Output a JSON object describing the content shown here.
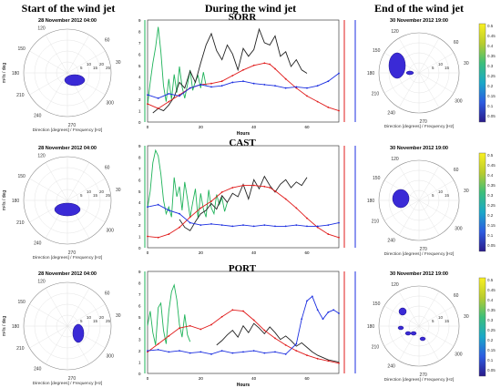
{
  "titles": {
    "start": "Start of the wind jet",
    "during": "During the wind jet",
    "end": "End of the wind jet"
  },
  "polar": {
    "dir_ticks": [
      "300",
      "270",
      "240",
      "210",
      "180",
      "150",
      "120",
      "60",
      "30"
    ],
    "freq_ticks": [
      "5",
      "10",
      "15",
      "20",
      "25"
    ],
    "freq_ticks_small": [
      "5",
      "10",
      "15"
    ],
    "ylabel": "m²/s / deg",
    "xlabel": "Direction [degrees] / Frequency [Hz]",
    "start_date": "28 November 2012   04:00",
    "end_date": "30 November 2012   19:00"
  },
  "colorbar": {
    "ticks": [
      "0.5",
      "0.45",
      "0.4",
      "0.35",
      "0.3",
      "0.25",
      "0.2",
      "0.15",
      "0.1",
      "0.05"
    ]
  },
  "chart_data": [
    {
      "type": "line",
      "title": "SORR",
      "xlabel": "Hours",
      "xlim": [
        0,
        72
      ],
      "x_ticks": [
        "0",
        "20",
        "40",
        "60"
      ],
      "y_ticks": [
        "0",
        "1",
        "2",
        "3",
        "4",
        "5",
        "6",
        "7",
        "8",
        "9"
      ],
      "series": [
        {
          "name": "green",
          "color": "#1fb35a",
          "axis": "left",
          "x": [
            0,
            1,
            2,
            3,
            4,
            5,
            6,
            7,
            8,
            9,
            10,
            11,
            12,
            13,
            14,
            15,
            16,
            17,
            18,
            19,
            20,
            21,
            22
          ],
          "y": [
            1.5,
            3.5,
            5.2,
            6.6,
            8.4,
            6.2,
            3.2,
            1.8,
            3.8,
            2.0,
            4.2,
            2.6,
            4.9,
            3.1,
            2.1,
            3.3,
            4.6,
            2.8,
            3.6,
            4.1,
            3.0,
            4.4,
            3.2
          ]
        },
        {
          "name": "black",
          "color": "#222222",
          "axis": "left",
          "x": [
            2,
            4,
            6,
            8,
            10,
            12,
            14,
            16,
            18,
            20,
            22,
            24,
            26,
            28,
            30,
            32,
            34,
            36,
            38,
            40,
            42,
            44,
            46,
            48,
            50,
            52,
            54,
            56,
            58,
            60
          ],
          "y": [
            0.8,
            1.2,
            1.0,
            1.5,
            2.2,
            3.5,
            3.0,
            4.5,
            3.5,
            5.2,
            6.8,
            7.8,
            6.3,
            5.5,
            6.8,
            6.0,
            4.6,
            6.5,
            5.8,
            6.4,
            8.2,
            7.0,
            6.8,
            7.6,
            5.8,
            6.2,
            4.9,
            5.5,
            4.6,
            4.3
          ]
        },
        {
          "name": "red",
          "color": "#e01b1b",
          "axis": "right",
          "x": [
            0,
            4,
            8,
            12,
            16,
            20,
            24,
            28,
            32,
            36,
            40,
            44,
            46,
            48,
            52,
            56,
            60,
            64,
            68,
            72
          ],
          "y": [
            1.6,
            1.2,
            1.8,
            2.4,
            3.0,
            3.3,
            3.4,
            3.6,
            4.1,
            4.6,
            5.0,
            5.2,
            5.1,
            4.7,
            3.8,
            3.0,
            2.3,
            1.8,
            1.3,
            1.0
          ]
        },
        {
          "name": "blue",
          "color": "#1b2ee0",
          "axis": "right",
          "x": [
            0,
            4,
            8,
            12,
            16,
            20,
            24,
            28,
            32,
            36,
            40,
            44,
            48,
            52,
            56,
            60,
            64,
            68,
            72
          ],
          "y": [
            2.4,
            2.1,
            2.5,
            2.3,
            3.0,
            3.3,
            3.1,
            3.2,
            3.5,
            3.6,
            3.4,
            3.3,
            3.2,
            3.0,
            3.1,
            3.0,
            3.2,
            3.6,
            4.3
          ]
        }
      ]
    },
    {
      "type": "line",
      "title": "CAST",
      "xlabel": "",
      "xlim": [
        0,
        72
      ],
      "x_ticks": [
        "0",
        "20",
        "40",
        "60"
      ],
      "y_ticks": [
        "0",
        "1",
        "2",
        "3",
        "4",
        "5",
        "6",
        "7",
        "8",
        "9"
      ],
      "series": [
        {
          "name": "green",
          "color": "#1fb35a",
          "axis": "left",
          "x": [
            0,
            1,
            2,
            3,
            4,
            5,
            6,
            7,
            8,
            9,
            10,
            11,
            12,
            13,
            14,
            15,
            16,
            17,
            18,
            19,
            20,
            21,
            22,
            23,
            24,
            25,
            26,
            27,
            28,
            29,
            30
          ],
          "y": [
            3.5,
            5.0,
            7.5,
            8.6,
            8.1,
            6.5,
            4.2,
            3.0,
            3.6,
            2.7,
            6.2,
            4.5,
            5.4,
            3.3,
            5.8,
            4.3,
            2.7,
            4.0,
            5.2,
            2.6,
            4.8,
            3.4,
            2.7,
            5.1,
            3.5,
            3.0,
            4.7,
            3.8,
            4.4,
            3.2,
            4.0
          ]
        },
        {
          "name": "black",
          "color": "#222222",
          "axis": "left",
          "x": [
            12,
            14,
            16,
            18,
            20,
            22,
            24,
            26,
            28,
            30,
            32,
            34,
            36,
            38,
            40,
            42,
            44,
            46,
            48,
            50,
            52,
            54,
            56,
            58,
            60
          ],
          "y": [
            2.5,
            1.8,
            1.5,
            2.3,
            3.0,
            3.3,
            3.9,
            3.4,
            4.6,
            4.0,
            4.8,
            4.5,
            5.6,
            4.3,
            6.0,
            5.2,
            6.3,
            5.5,
            4.9,
            5.6,
            6.0,
            5.3,
            5.8,
            5.5,
            6.2
          ]
        },
        {
          "name": "red",
          "color": "#e01b1b",
          "axis": "right",
          "x": [
            0,
            4,
            8,
            12,
            16,
            20,
            24,
            28,
            32,
            36,
            40,
            44,
            46,
            48,
            52,
            56,
            60,
            64,
            68,
            72
          ],
          "y": [
            1.0,
            0.9,
            1.2,
            1.8,
            2.7,
            3.5,
            4.1,
            4.9,
            5.3,
            5.5,
            5.5,
            5.4,
            5.3,
            5.0,
            4.3,
            3.5,
            2.6,
            1.8,
            1.2,
            0.9
          ]
        },
        {
          "name": "blue",
          "color": "#1b2ee0",
          "axis": "right",
          "x": [
            0,
            4,
            8,
            12,
            16,
            20,
            24,
            28,
            32,
            36,
            40,
            44,
            48,
            52,
            56,
            60,
            64,
            68,
            72
          ],
          "y": [
            3.6,
            3.8,
            3.3,
            3.0,
            2.2,
            2.0,
            2.1,
            2.0,
            1.9,
            2.0,
            1.9,
            2.0,
            1.9,
            1.9,
            2.0,
            1.9,
            1.9,
            2.0,
            2.2
          ]
        }
      ]
    },
    {
      "type": "line",
      "title": "PORT",
      "xlabel": "Hours",
      "xlim": [
        0,
        72
      ],
      "x_ticks": [
        "0",
        "20",
        "40",
        "60"
      ],
      "y_ticks": [
        "0",
        "1",
        "2",
        "3",
        "4",
        "5",
        "6",
        "7",
        "8",
        "9"
      ],
      "series": [
        {
          "name": "green",
          "color": "#1fb35a",
          "axis": "left",
          "x": [
            0,
            1,
            2,
            3,
            4,
            5,
            6,
            7,
            8,
            9,
            10,
            11,
            12,
            13,
            14,
            15,
            16
          ],
          "y": [
            4.2,
            5.5,
            3.6,
            2.5,
            5.8,
            6.2,
            3.8,
            2.6,
            5.5,
            7.2,
            7.8,
            6.5,
            4.3,
            3.2,
            5.2,
            3.4,
            2.8
          ]
        },
        {
          "name": "black",
          "color": "#222222",
          "axis": "left",
          "x": [
            26,
            28,
            30,
            32,
            34,
            36,
            38,
            40,
            42,
            44,
            46,
            48,
            50,
            52,
            54,
            56,
            58,
            60,
            62,
            64,
            66,
            68,
            70,
            72
          ],
          "y": [
            2.5,
            2.9,
            3.4,
            3.8,
            3.2,
            4.2,
            3.6,
            4.4,
            4.0,
            3.5,
            4.1,
            3.6,
            3.0,
            3.3,
            2.9,
            2.4,
            2.7,
            2.3,
            1.9,
            1.6,
            1.4,
            1.2,
            1.1,
            1.0
          ]
        },
        {
          "name": "red",
          "color": "#e01b1b",
          "axis": "right",
          "x": [
            0,
            4,
            8,
            12,
            16,
            20,
            24,
            28,
            32,
            36,
            40,
            44,
            48,
            52,
            56,
            60,
            64,
            68,
            72
          ],
          "y": [
            1.9,
            2.6,
            3.3,
            4.0,
            4.2,
            3.9,
            4.3,
            5.0,
            5.6,
            5.5,
            4.7,
            3.8,
            3.1,
            2.5,
            2.0,
            1.6,
            1.3,
            1.1,
            0.9
          ]
        },
        {
          "name": "blue",
          "color": "#1b2ee0",
          "axis": "right",
          "x": [
            0,
            4,
            8,
            12,
            16,
            20,
            24,
            28,
            32,
            36,
            40,
            44,
            48,
            52,
            56,
            58,
            60,
            62,
            64,
            66,
            68,
            70,
            72
          ],
          "y": [
            2.0,
            2.1,
            1.9,
            2.0,
            1.8,
            1.9,
            1.7,
            2.0,
            1.8,
            1.9,
            2.0,
            1.8,
            1.9,
            1.7,
            2.6,
            4.8,
            6.4,
            6.8,
            5.6,
            4.8,
            5.4,
            5.6,
            5.3
          ]
        }
      ]
    }
  ]
}
